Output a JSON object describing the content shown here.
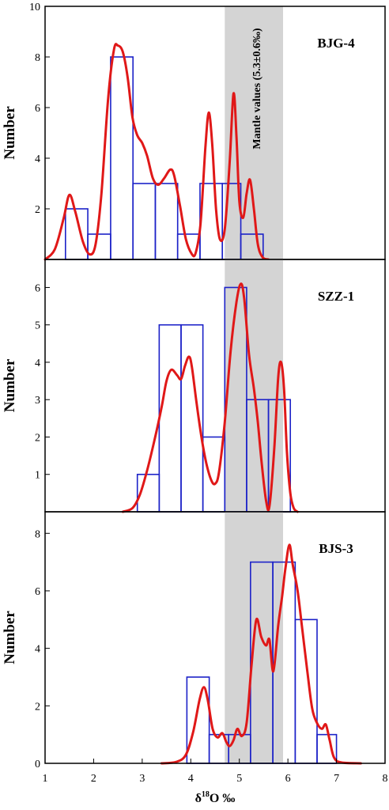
{
  "chart_data": {
    "type": "bar",
    "xlabel": "δ18O ‰",
    "xlabel_parts": {
      "prefix": "δ",
      "sup": "18",
      "suffix": "O ‰"
    },
    "ylabel": "Number",
    "xlim": [
      1,
      8
    ],
    "xticks": [
      1,
      2,
      3,
      4,
      5,
      6,
      7,
      8
    ],
    "mantle_band": {
      "range": [
        4.7,
        5.9
      ],
      "label": "Mantle values (5.3±0.6‰)"
    },
    "colors": {
      "bars": "#1c22c8",
      "curve": "#e01818",
      "band": "#d4d4d4"
    },
    "panels": [
      {
        "name": "BJG-4",
        "ylim": [
          0,
          10
        ],
        "yticks": [
          2,
          4,
          6,
          8,
          10
        ],
        "bins": [
          {
            "x0": 1.42,
            "x1": 1.88,
            "count": 2
          },
          {
            "x0": 1.88,
            "x1": 2.35,
            "count": 1
          },
          {
            "x0": 2.35,
            "x1": 2.81,
            "count": 8
          },
          {
            "x0": 2.81,
            "x1": 3.27,
            "count": 3
          },
          {
            "x0": 3.27,
            "x1": 3.73,
            "count": 3
          },
          {
            "x0": 3.73,
            "x1": 4.19,
            "count": 1
          },
          {
            "x0": 4.19,
            "x1": 4.65,
            "count": 3
          },
          {
            "x0": 4.65,
            "x1": 5.03,
            "count": 3
          },
          {
            "x0": 5.03,
            "x1": 5.49,
            "count": 1
          }
        ],
        "curve": [
          [
            1.0,
            0
          ],
          [
            1.2,
            0.4
          ],
          [
            1.38,
            1.6
          ],
          [
            1.5,
            2.55
          ],
          [
            1.62,
            1.9
          ],
          [
            1.78,
            0.7
          ],
          [
            1.92,
            0.2
          ],
          [
            2.04,
            0.6
          ],
          [
            2.16,
            2.6
          ],
          [
            2.3,
            6.4
          ],
          [
            2.42,
            8.3
          ],
          [
            2.5,
            8.45
          ],
          [
            2.6,
            8.2
          ],
          [
            2.7,
            7.2
          ],
          [
            2.8,
            5.6
          ],
          [
            2.9,
            4.9
          ],
          [
            3.0,
            4.6
          ],
          [
            3.1,
            4.1
          ],
          [
            3.22,
            3.2
          ],
          [
            3.33,
            2.95
          ],
          [
            3.45,
            3.2
          ],
          [
            3.58,
            3.55
          ],
          [
            3.66,
            3.3
          ],
          [
            3.78,
            2.1
          ],
          [
            3.9,
            0.8
          ],
          [
            4.02,
            0.22
          ],
          [
            4.1,
            0.25
          ],
          [
            4.2,
            1.4
          ],
          [
            4.3,
            4.4
          ],
          [
            4.37,
            5.8
          ],
          [
            4.44,
            4.6
          ],
          [
            4.52,
            2.0
          ],
          [
            4.6,
            0.8
          ],
          [
            4.7,
            1.2
          ],
          [
            4.8,
            3.8
          ],
          [
            4.88,
            6.55
          ],
          [
            4.94,
            4.9
          ],
          [
            5.0,
            2.3
          ],
          [
            5.08,
            1.65
          ],
          [
            5.15,
            2.6
          ],
          [
            5.22,
            3.15
          ],
          [
            5.3,
            2.0
          ],
          [
            5.38,
            0.6
          ],
          [
            5.48,
            0.08
          ],
          [
            5.6,
            0
          ]
        ]
      },
      {
        "name": "SZZ-1",
        "ylim": [
          0,
          6.75
        ],
        "yticks": [
          1,
          2,
          3,
          4,
          5,
          6
        ],
        "bins": [
          {
            "x0": 2.9,
            "x1": 3.35,
            "count": 1
          },
          {
            "x0": 3.35,
            "x1": 3.8,
            "count": 5
          },
          {
            "x0": 3.8,
            "x1": 4.25,
            "count": 5
          },
          {
            "x0": 4.25,
            "x1": 4.7,
            "count": 2
          },
          {
            "x0": 4.7,
            "x1": 5.15,
            "count": 6
          },
          {
            "x0": 5.15,
            "x1": 5.6,
            "count": 3
          },
          {
            "x0": 5.6,
            "x1": 6.05,
            "count": 3
          }
        ],
        "curve": [
          [
            2.6,
            0
          ],
          [
            2.8,
            0.1
          ],
          [
            2.95,
            0.45
          ],
          [
            3.1,
            1.1
          ],
          [
            3.25,
            1.9
          ],
          [
            3.4,
            2.8
          ],
          [
            3.5,
            3.5
          ],
          [
            3.6,
            3.8
          ],
          [
            3.72,
            3.65
          ],
          [
            3.8,
            3.55
          ],
          [
            3.88,
            3.9
          ],
          [
            3.96,
            4.15
          ],
          [
            4.02,
            3.9
          ],
          [
            4.12,
            2.9
          ],
          [
            4.22,
            2.0
          ],
          [
            4.32,
            1.3
          ],
          [
            4.42,
            0.85
          ],
          [
            4.5,
            0.75
          ],
          [
            4.58,
            1.05
          ],
          [
            4.7,
            2.4
          ],
          [
            4.82,
            4.3
          ],
          [
            4.94,
            5.6
          ],
          [
            5.03,
            6.1
          ],
          [
            5.1,
            5.7
          ],
          [
            5.2,
            4.2
          ],
          [
            5.3,
            3.3
          ],
          [
            5.38,
            2.4
          ],
          [
            5.46,
            1.3
          ],
          [
            5.55,
            0.3
          ],
          [
            5.62,
            0.15
          ],
          [
            5.72,
            1.7
          ],
          [
            5.8,
            3.6
          ],
          [
            5.86,
            4.0
          ],
          [
            5.92,
            3.3
          ],
          [
            5.98,
            1.6
          ],
          [
            6.05,
            0.5
          ],
          [
            6.12,
            0.1
          ],
          [
            6.2,
            0
          ]
        ]
      },
      {
        "name": "BJS-3",
        "ylim": [
          0,
          8.75
        ],
        "yticks": [
          0,
          2,
          4,
          6,
          8
        ],
        "bins": [
          {
            "x0": 3.92,
            "x1": 4.38,
            "count": 3
          },
          {
            "x0": 4.38,
            "x1": 4.78,
            "count": 1
          },
          {
            "x0": 4.78,
            "x1": 5.23,
            "count": 1
          },
          {
            "x0": 5.23,
            "x1": 5.69,
            "count": 7
          },
          {
            "x0": 5.69,
            "x1": 6.15,
            "count": 7
          },
          {
            "x0": 6.15,
            "x1": 6.6,
            "count": 5
          },
          {
            "x0": 6.6,
            "x1": 7.0,
            "count": 1
          }
        ],
        "curve": [
          [
            3.4,
            0
          ],
          [
            3.7,
            0.05
          ],
          [
            3.9,
            0.3
          ],
          [
            4.05,
            1.1
          ],
          [
            4.18,
            2.2
          ],
          [
            4.27,
            2.65
          ],
          [
            4.35,
            2.2
          ],
          [
            4.45,
            1.2
          ],
          [
            4.55,
            0.9
          ],
          [
            4.65,
            1.05
          ],
          [
            4.73,
            0.75
          ],
          [
            4.8,
            0.6
          ],
          [
            4.88,
            0.8
          ],
          [
            4.96,
            1.2
          ],
          [
            5.05,
            0.95
          ],
          [
            5.15,
            1.4
          ],
          [
            5.25,
            3.4
          ],
          [
            5.35,
            5.0
          ],
          [
            5.45,
            4.4
          ],
          [
            5.55,
            4.1
          ],
          [
            5.62,
            4.3
          ],
          [
            5.7,
            3.2
          ],
          [
            5.8,
            4.8
          ],
          [
            5.88,
            5.8
          ],
          [
            5.95,
            6.8
          ],
          [
            6.03,
            7.6
          ],
          [
            6.1,
            6.9
          ],
          [
            6.2,
            6.0
          ],
          [
            6.3,
            4.6
          ],
          [
            6.4,
            3.2
          ],
          [
            6.5,
            1.9
          ],
          [
            6.6,
            1.4
          ],
          [
            6.7,
            1.2
          ],
          [
            6.78,
            1.35
          ],
          [
            6.86,
            0.8
          ],
          [
            6.95,
            0.2
          ],
          [
            7.1,
            0.03
          ],
          [
            7.5,
            0
          ]
        ]
      }
    ]
  }
}
